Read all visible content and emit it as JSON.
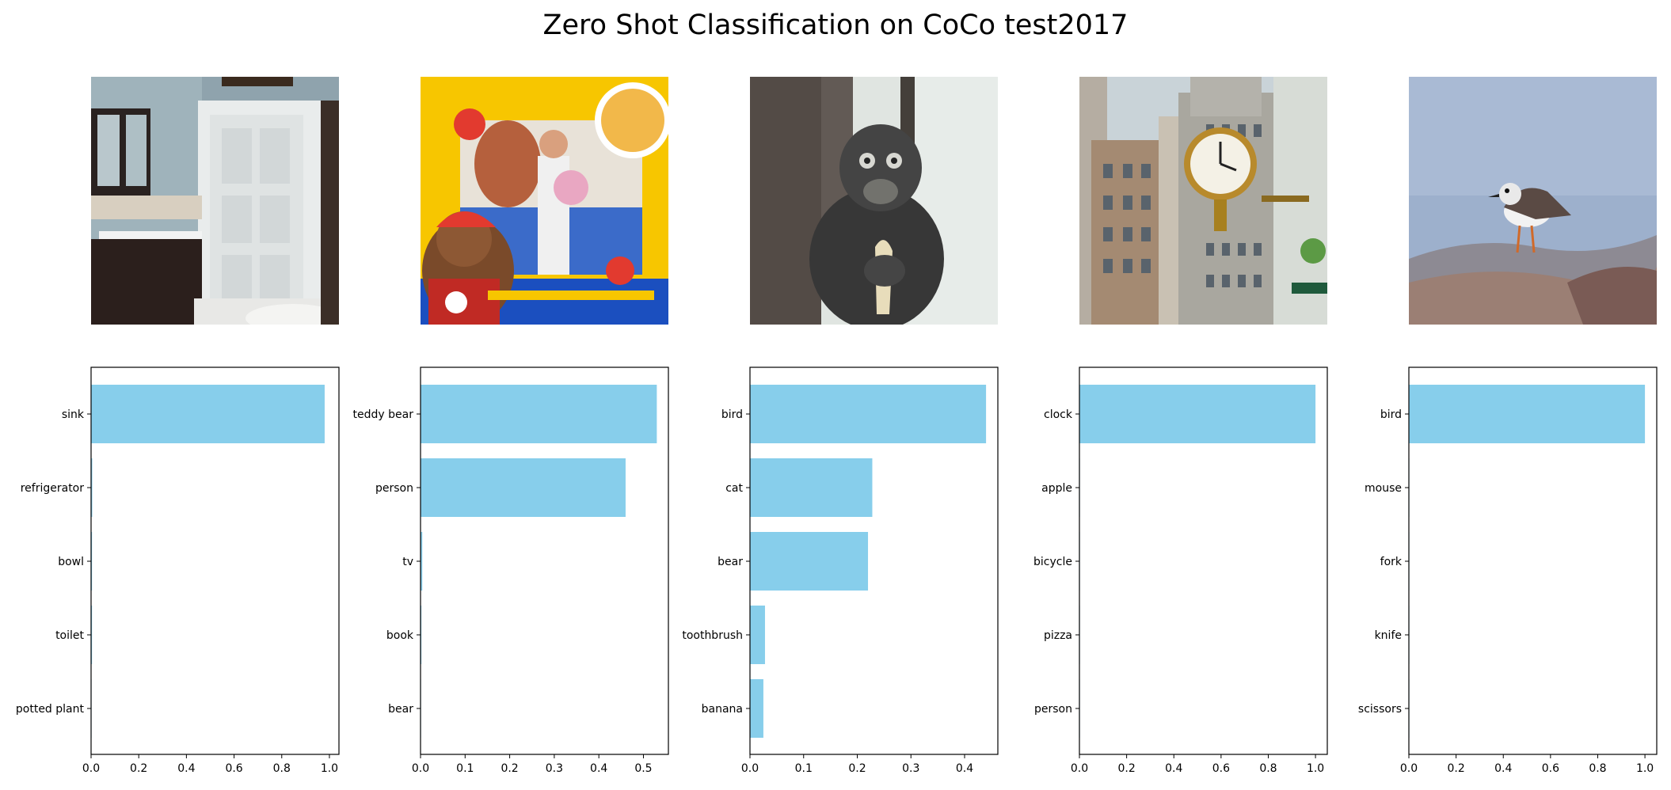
{
  "figure": {
    "title": "Zero Shot Classification on CoCo test2017"
  },
  "colors": {
    "bar": "#87ceeb",
    "axis": "#000000",
    "tick": "#000000"
  },
  "images": [
    {
      "name": "bathroom-photo"
    },
    {
      "name": "teddy-bear-workshop-photo"
    },
    {
      "name": "monkey-photo"
    },
    {
      "name": "street-clock-photo"
    },
    {
      "name": "shorebird-photo"
    }
  ],
  "chart_data": [
    {
      "type": "bar",
      "orientation": "horizontal",
      "categories": [
        "sink",
        "refrigerator",
        "bowl",
        "toilet",
        "potted plant"
      ],
      "values": [
        0.98,
        0.005,
        0.004,
        0.004,
        0.002
      ],
      "xlim": [
        0,
        1.04
      ],
      "xticks": [
        0,
        0.2,
        0.4,
        0.6,
        0.8,
        1.0
      ],
      "xtick_labels": [
        "0.0",
        "0.2",
        "0.4",
        "0.6",
        "0.8",
        "1.0"
      ]
    },
    {
      "type": "bar",
      "orientation": "horizontal",
      "categories": [
        "teddy bear",
        "person",
        "tv",
        "book",
        "bear"
      ],
      "values": [
        0.53,
        0.46,
        0.004,
        0.002,
        0.001
      ],
      "xlim": [
        0,
        0.556
      ],
      "xticks": [
        0,
        0.1,
        0.2,
        0.3,
        0.4,
        0.5
      ],
      "xtick_labels": [
        "0.0",
        "0.1",
        "0.2",
        "0.3",
        "0.4",
        "0.5"
      ]
    },
    {
      "type": "bar",
      "orientation": "horizontal",
      "categories": [
        "bird",
        "cat",
        "bear",
        "toothbrush",
        "banana"
      ],
      "values": [
        0.44,
        0.228,
        0.22,
        0.028,
        0.025
      ],
      "xlim": [
        0,
        0.462
      ],
      "xticks": [
        0,
        0.1,
        0.2,
        0.3,
        0.4
      ],
      "xtick_labels": [
        "0.0",
        "0.1",
        "0.2",
        "0.3",
        "0.4"
      ]
    },
    {
      "type": "bar",
      "orientation": "horizontal",
      "categories": [
        "clock",
        "apple",
        "bicycle",
        "pizza",
        "person"
      ],
      "values": [
        1.0,
        0.0005,
        0.0003,
        0.0002,
        0.0001
      ],
      "xlim": [
        0,
        1.05
      ],
      "xticks": [
        0,
        0.2,
        0.4,
        0.6,
        0.8,
        1.0
      ],
      "xtick_labels": [
        "0.0",
        "0.2",
        "0.4",
        "0.6",
        "0.8",
        "1.0"
      ]
    },
    {
      "type": "bar",
      "orientation": "horizontal",
      "categories": [
        "bird",
        "mouse",
        "fork",
        "knife",
        "scissors"
      ],
      "values": [
        1.0,
        0.0005,
        0.0003,
        0.0002,
        0.0001
      ],
      "xlim": [
        0,
        1.05
      ],
      "xticks": [
        0,
        0.2,
        0.4,
        0.6,
        0.8,
        1.0
      ],
      "xtick_labels": [
        "0.0",
        "0.2",
        "0.4",
        "0.6",
        "0.8",
        "1.0"
      ]
    }
  ]
}
